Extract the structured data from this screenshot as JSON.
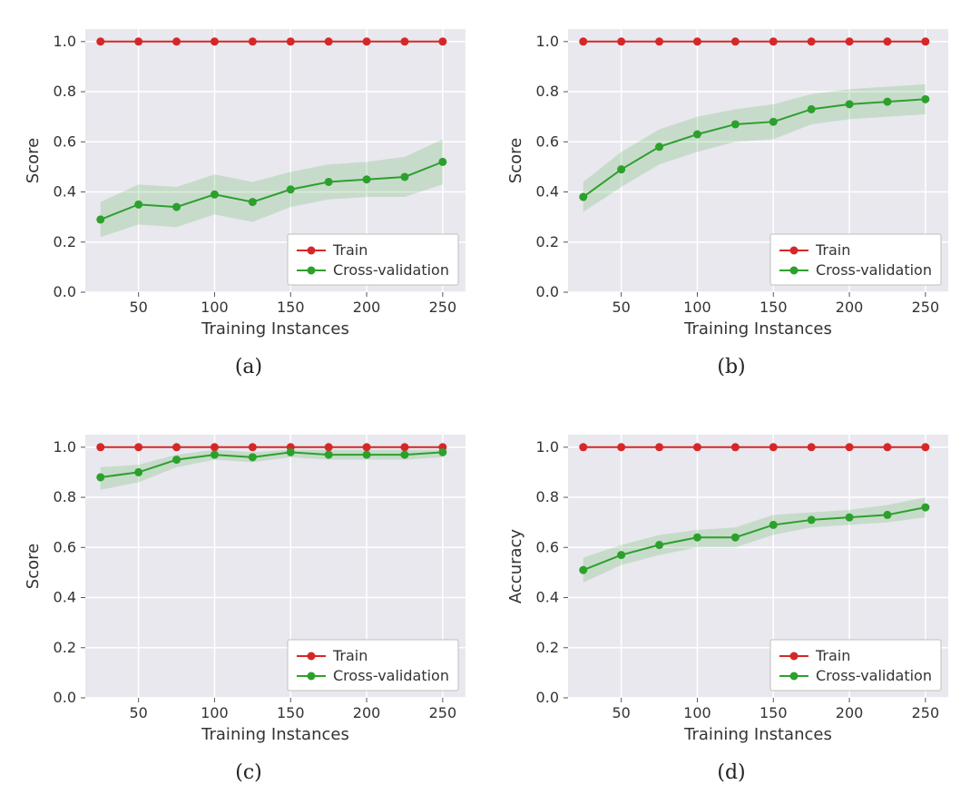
{
  "global": {
    "plot_bg": "#e9e8ee",
    "grid_color": "#ffffff",
    "tick_color": "#555555",
    "text_color": "#333333",
    "train_color": "#d62728",
    "cv_color": "#2ca02c",
    "cv_band_opacity": 0.18,
    "marker_radius": 4.5,
    "line_width": 2,
    "legend_bg": "#ffffff",
    "legend_border": "#bfbfbf",
    "axis_fontsize": 18,
    "tick_fontsize": 16,
    "legend_fontsize": 16,
    "xlim": [
      15,
      265
    ],
    "ylim": [
      0,
      1.05
    ],
    "xticks": [
      50,
      100,
      150,
      200,
      250
    ],
    "yticks": [
      0.0,
      0.2,
      0.4,
      0.6,
      0.8,
      1.0
    ],
    "xlabel": "Training Instances",
    "legend_train": "Train",
    "legend_cv": "Cross-validation",
    "x_values": [
      25,
      50,
      75,
      100,
      125,
      150,
      175,
      200,
      225,
      250
    ],
    "train_y": [
      1.0,
      1.0,
      1.0,
      1.0,
      1.0,
      1.0,
      1.0,
      1.0,
      1.0,
      1.0
    ]
  },
  "panels": [
    {
      "caption": "(a)",
      "ylabel": "Score",
      "cv_y": [
        0.29,
        0.35,
        0.34,
        0.39,
        0.36,
        0.41,
        0.44,
        0.45,
        0.46,
        0.52
      ],
      "cv_lo": [
        0.22,
        0.27,
        0.26,
        0.31,
        0.28,
        0.34,
        0.37,
        0.38,
        0.38,
        0.43
      ],
      "cv_hi": [
        0.36,
        0.43,
        0.42,
        0.47,
        0.44,
        0.48,
        0.51,
        0.52,
        0.54,
        0.61
      ]
    },
    {
      "caption": "(b)",
      "ylabel": "Score",
      "cv_y": [
        0.38,
        0.49,
        0.58,
        0.63,
        0.67,
        0.68,
        0.73,
        0.75,
        0.76,
        0.77
      ],
      "cv_lo": [
        0.32,
        0.42,
        0.51,
        0.56,
        0.6,
        0.61,
        0.67,
        0.69,
        0.7,
        0.71
      ],
      "cv_hi": [
        0.44,
        0.56,
        0.65,
        0.7,
        0.73,
        0.75,
        0.79,
        0.81,
        0.82,
        0.83
      ]
    },
    {
      "caption": "(c)",
      "ylabel": "Score",
      "cv_y": [
        0.88,
        0.9,
        0.95,
        0.97,
        0.96,
        0.98,
        0.97,
        0.97,
        0.97,
        0.98
      ],
      "cv_lo": [
        0.83,
        0.86,
        0.92,
        0.95,
        0.94,
        0.96,
        0.95,
        0.95,
        0.95,
        0.96
      ],
      "cv_hi": [
        0.92,
        0.93,
        0.97,
        0.99,
        0.98,
        0.99,
        0.99,
        0.99,
        0.99,
        0.99
      ]
    },
    {
      "caption": "(d)",
      "ylabel": "Accuracy",
      "cv_y": [
        0.51,
        0.57,
        0.61,
        0.64,
        0.64,
        0.69,
        0.71,
        0.72,
        0.73,
        0.76
      ],
      "cv_lo": [
        0.46,
        0.53,
        0.57,
        0.6,
        0.6,
        0.65,
        0.68,
        0.69,
        0.7,
        0.72
      ],
      "cv_hi": [
        0.56,
        0.61,
        0.65,
        0.67,
        0.68,
        0.73,
        0.74,
        0.75,
        0.77,
        0.8
      ]
    }
  ]
}
